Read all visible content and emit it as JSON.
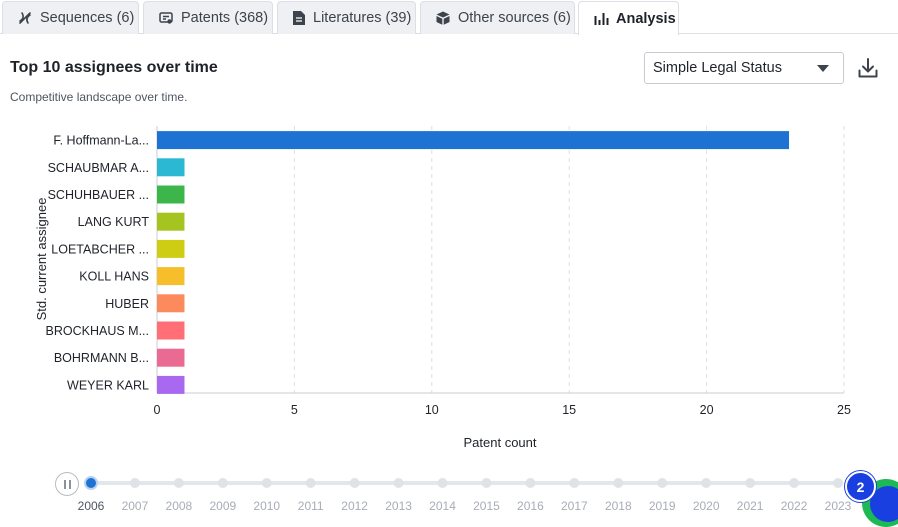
{
  "tabs": [
    {
      "label": "Sequences (6)",
      "icon": "sequence-icon"
    },
    {
      "label": "Patents (368)",
      "icon": "patent-icon"
    },
    {
      "label": "Literatures (39)",
      "icon": "document-icon"
    },
    {
      "label": "Other sources (6)",
      "icon": "box-icon"
    },
    {
      "label": "Analysis",
      "icon": "bar-chart-icon"
    }
  ],
  "header": {
    "title": "Top 10 assignees over time",
    "subtitle": "Competitive landscape over time.",
    "select_value": "Simple Legal Status"
  },
  "timeline": {
    "years": [
      "2006",
      "2007",
      "2008",
      "2009",
      "2010",
      "2011",
      "2012",
      "2013",
      "2014",
      "2015",
      "2016",
      "2017",
      "2018",
      "2019",
      "2020",
      "2021",
      "2022",
      "2023"
    ],
    "current": "2006",
    "badge": "2"
  },
  "chart_data": {
    "type": "bar",
    "orientation": "horizontal",
    "categories": [
      "F. Hoffmann-La...",
      "SCHAUBMAR A...",
      "SCHUHBAUER ...",
      "LANG KURT",
      "LOETABCHER ...",
      "KOLL HANS",
      "HUBER",
      "BROCKHAUS M...",
      "BOHRMANN B...",
      "WEYER KARL"
    ],
    "values": [
      23,
      1,
      1,
      1,
      1,
      1,
      1,
      1,
      1,
      1
    ],
    "colors": [
      "#1e72d2",
      "#2bb8d3",
      "#3cb54a",
      "#a5c41f",
      "#cfcd13",
      "#f7be2c",
      "#fd8a5c",
      "#ff6f75",
      "#e96b93",
      "#a968f0"
    ],
    "xlabel": "Patent count",
    "ylabel": "Std. current assignee",
    "xlim": [
      0,
      25
    ],
    "xticks": [
      0,
      5,
      10,
      15,
      20,
      25
    ],
    "grid": "vertical-dashed"
  }
}
